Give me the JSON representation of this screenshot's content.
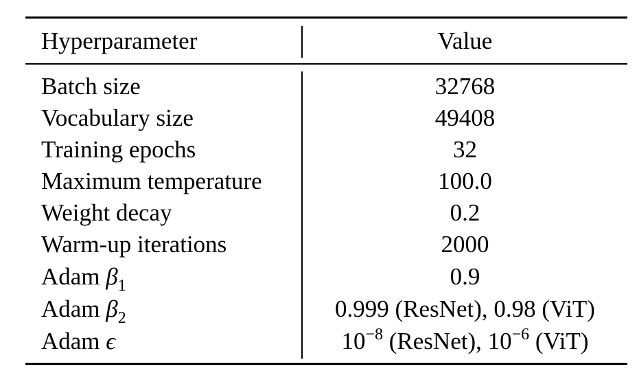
{
  "table": {
    "headers": {
      "param": "Hyperparameter",
      "value": "Value"
    },
    "rows": [
      {
        "param": "Batch size",
        "value": "32768"
      },
      {
        "param": "Vocabulary size",
        "value": "49408"
      },
      {
        "param": "Training epochs",
        "value": "32"
      },
      {
        "param": "Maximum temperature",
        "value": "100.0"
      },
      {
        "param": "Weight decay",
        "value": "0.2"
      },
      {
        "param": "Warm-up iterations",
        "value": "2000"
      },
      {
        "param_prefix": "Adam",
        "param_symbol": "β",
        "param_sub": "1",
        "value": "0.9"
      },
      {
        "param_prefix": "Adam",
        "param_symbol": "β",
        "param_sub": "2",
        "value": "0.999 (ResNet), 0.98 (ViT)"
      },
      {
        "param_prefix": "Adam",
        "param_symbol": "ϵ",
        "value_a_base": "10",
        "value_a_exp": "−8",
        "value_a_label": "(ResNet),",
        "value_b_base": "10",
        "value_b_exp": "−6",
        "value_b_label": "(ViT)"
      }
    ]
  }
}
